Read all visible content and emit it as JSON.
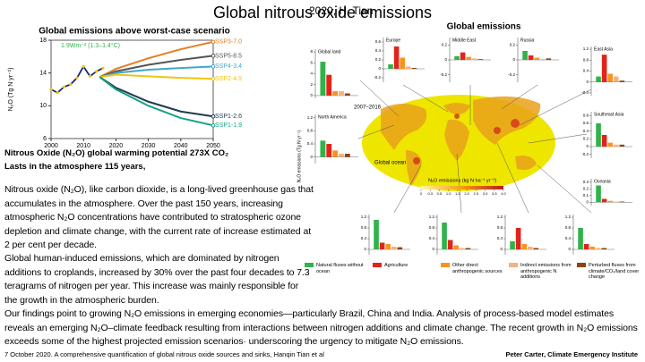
{
  "header": {
    "author": "2020, H. Tian",
    "title": "Global nitrous oxide emissions"
  },
  "chart_data": {
    "type": "line",
    "title": "Global emissions above worst-case scenario",
    "y_label": "N₂O (Tg N yr⁻¹)",
    "annotation": "1.9Wm⁻² (1.3–1.4°C)",
    "xlim": [
      2000,
      2050
    ],
    "xticks": [
      2000,
      2010,
      2020,
      2030,
      2040,
      2050
    ],
    "ylim": [
      6,
      18
    ],
    "yticks": [
      6,
      10,
      14,
      18
    ],
    "series": [
      {
        "name": "SSP3-7.0",
        "color": "#e67e22",
        "x": [
          2015,
          2020,
          2030,
          2040,
          2050
        ],
        "values": [
          13.5,
          14.5,
          15.8,
          16.9,
          17.8
        ]
      },
      {
        "name": "SSP5-8.5",
        "color": "#555555",
        "x": [
          2015,
          2020,
          2030,
          2040,
          2050
        ],
        "values": [
          13.5,
          14.2,
          15.0,
          15.6,
          16.1
        ]
      },
      {
        "name": "SSP4-3.4",
        "color": "#3fa9c9",
        "x": [
          2015,
          2020,
          2030,
          2040,
          2050
        ],
        "values": [
          13.5,
          14.0,
          14.4,
          14.6,
          14.8
        ]
      },
      {
        "name": "SSP2-4.5",
        "color": "#f1c40f",
        "x": [
          2015,
          2020,
          2030,
          2040,
          2050
        ],
        "values": [
          13.5,
          13.8,
          13.6,
          13.4,
          13.3
        ]
      },
      {
        "name": "SSP1-2.6",
        "color": "#1f3b4d",
        "x": [
          2015,
          2020,
          2030,
          2040,
          2050
        ],
        "values": [
          13.5,
          12.2,
          10.5,
          9.3,
          8.7
        ]
      },
      {
        "name": "SSP1-1.9",
        "color": "#16a085",
        "x": [
          2015,
          2020,
          2030,
          2040,
          2050
        ],
        "values": [
          13.5,
          12.0,
          10.0,
          8.5,
          7.6
        ]
      }
    ],
    "observed": {
      "color": "#1a2a6c",
      "marker_color": "#f5c400",
      "x": [
        2000,
        2002,
        2004,
        2006,
        2008,
        2010,
        2012,
        2014,
        2016
      ],
      "values": [
        12.0,
        11.6,
        12.3,
        12.6,
        13.4,
        14.8,
        13.6,
        14.2,
        14.6
      ]
    }
  },
  "notes": [
    "Nitrous Oxide (N₂O) global warming potential 273X CO₂",
    "Lasts in the atmosphere 115 years,"
  ],
  "paragraphs": [
    "Nitrous oxide (N₂O), like carbon dioxide, is a long-lived greenhouse gas that accumulates in the atmosphere. Over the past 150 years, increasing atmospheric N₂O concentrations have contributed to stratospheric ozone depletion and climate change, with the current rate of increase estimated at 2 per cent per decade.",
    "Global human-induced emissions, which are dominated by nitrogen additions to croplands, increased by 30% over the past four decades to 7.3 teragrams of nitrogen per year. This increase was mainly responsible for the growth in the atmospheric burden.",
    "Our findings point to growing N₂O emissions in emerging economies—particularly Brazil, China and India. Analysis of process-based model estimates reveals an emerging N₂O–climate feedback resulting from interactions between nitrogen additions and climate change. The recent growth in N₂O emissions exceeds some of the highest projected emission scenarios· underscoring the urgency to mitigate N₂O emissions."
  ],
  "map": {
    "title": "Global emissions",
    "period": "2007–2016",
    "ocean_label": "Global ocean",
    "scale_label": "N₂O emissions (kg N ha⁻¹ yr⁻¹)",
    "y_label": "N₂O emissions (Tg N yr⁻¹)",
    "scale_ticks": [
      0,
      0.3,
      0.5,
      {
        "value": 1,
        "label": "1.0"
      },
      1.5,
      {
        "value": 2,
        "label": "2.0"
      },
      2.5,
      {
        "value": 3,
        "label": "3.0"
      },
      3.5,
      {
        "value": 4,
        "label": "4.0"
      }
    ],
    "legend": [
      {
        "name": "Natural fluxes without ocean",
        "color": "#2fb34a"
      },
      {
        "name": "Agriculture",
        "color": "#e2231a"
      },
      {
        "name": "Other direct anthropogenic sources",
        "color": "#f7941d"
      },
      {
        "name": "Indirect emissions from anthropogenic N additions",
        "color": "#f4b183"
      },
      {
        "name": "Perturbed fluxes from climate/CO₂/land cover change",
        "color": "#8b4513"
      }
    ],
    "panels": [
      {
        "name": "Global land",
        "ylim": [
          -0.5,
          8.5
        ],
        "yticks": [
          0,
          2,
          4,
          6,
          8
        ],
        "values": [
          6.2,
          3.8,
          0.8,
          0.8,
          0.4
        ]
      },
      {
        "name": "Europe",
        "ylim": [
          -0.3,
          0.7
        ],
        "yticks": [
          -0.2,
          0,
          0.2,
          0.4,
          0.6
        ],
        "values": [
          0.1,
          0.5,
          0.25,
          0.05,
          0.02
        ]
      },
      {
        "name": "Middle East",
        "ylim": [
          -0.3,
          0.3
        ],
        "yticks": [
          -0.2,
          0,
          0.2
        ],
        "values": [
          0.05,
          0.1,
          0.04,
          0.02,
          0.01
        ]
      },
      {
        "name": "Russia",
        "ylim": [
          -0.3,
          0.3
        ],
        "yticks": [
          -0.2,
          0,
          0.2
        ],
        "values": [
          0.12,
          0.06,
          0.03,
          0.01,
          0.02
        ]
      },
      {
        "name": "East Asia",
        "ylim": [
          -0.5,
          1.3
        ],
        "yticks": [
          -0.4,
          0,
          0.4,
          0.8,
          1.2
        ],
        "values": [
          0.2,
          1.0,
          0.3,
          0.2,
          0.05
        ]
      },
      {
        "name": "North America",
        "ylim": [
          -0.2,
          1.3
        ],
        "yticks": [
          0,
          0.4,
          0.8,
          1.2
        ],
        "values": [
          0.5,
          0.4,
          0.2,
          0.1,
          0.1
        ]
      },
      {
        "name": "Southeast Asia",
        "ylim": [
          -0.3,
          0.9
        ],
        "yticks": [
          -0.2,
          0,
          0.2,
          0.4,
          0.6,
          0.8
        ],
        "values": [
          0.6,
          0.3,
          0.1,
          0.05,
          0.05
        ]
      },
      {
        "name": "Oceania",
        "ylim": [
          -0.05,
          0.35
        ],
        "yticks": [
          0,
          0.1,
          0.2,
          0.3
        ],
        "values": [
          0.25,
          0.05,
          0.02,
          0.01,
          0.01
        ]
      },
      {
        "ylim": [
          -0.2,
          1.3
        ],
        "yticks": [
          0,
          0.4,
          0.8,
          1.2
        ],
        "values": [
          1.1,
          0.25,
          0.2,
          0.1,
          0.08
        ]
      },
      {
        "ylim": [
          -0.2,
          1.3
        ],
        "yticks": [
          0,
          0.4,
          0.8,
          1.2
        ],
        "values": [
          1.0,
          0.35,
          0.15,
          0.05,
          0.05
        ]
      },
      {
        "ylim": [
          -0.2,
          1.3
        ],
        "yticks": [
          0,
          0.4,
          0.8,
          1.2
        ],
        "values": [
          0.3,
          0.8,
          0.2,
          0.1,
          0.05
        ]
      },
      {
        "ylim": [
          -0.2,
          1.3
        ],
        "yticks": [
          0,
          0.4,
          0.8,
          1.2
        ],
        "values": [
          0.8,
          0.2,
          0.1,
          0.05,
          0.05
        ]
      }
    ]
  },
  "footer": {
    "left": "7 October 2020. A comprehensive quantification of global nitrous oxide sources and sinks, Hanqin Tian et al",
    "right": "Peter Carter, Climate Emergency Institute"
  }
}
